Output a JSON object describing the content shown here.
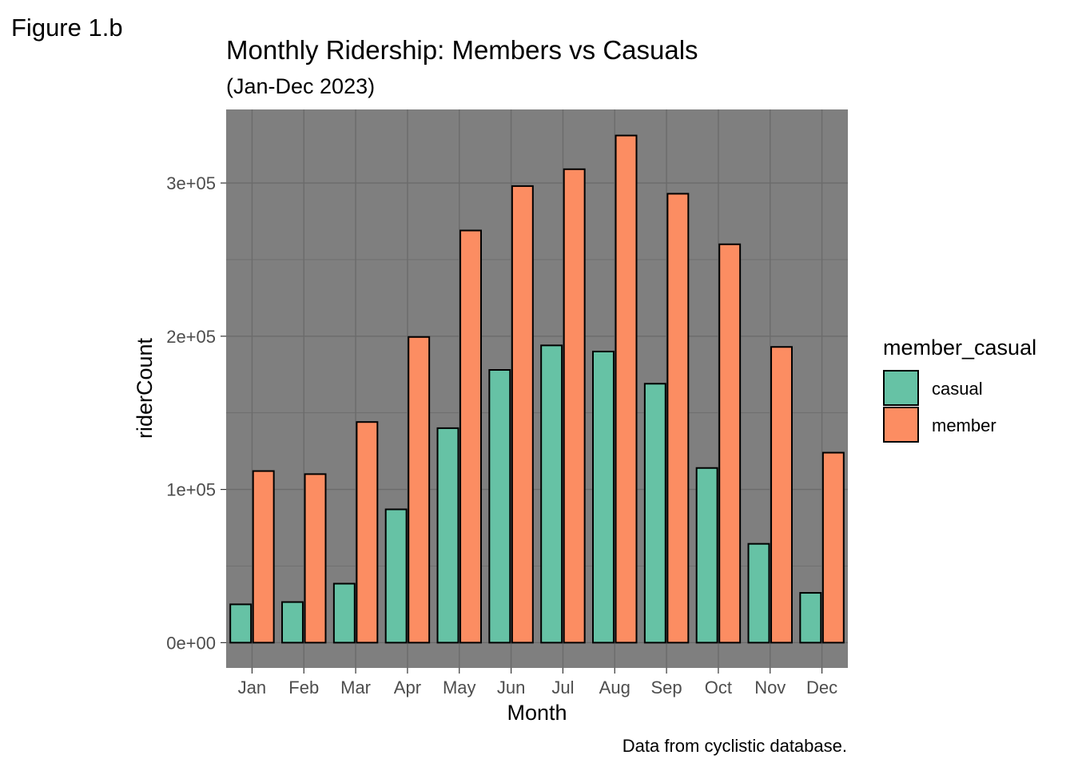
{
  "figure_label": "Figure 1.b",
  "chart_data": {
    "type": "bar",
    "title": "Monthly Ridership: Members vs Casuals",
    "subtitle": "(Jan-Dec 2023)",
    "xlabel": "Month",
    "ylabel": "riderCount",
    "caption": "Data from cyclistic database.",
    "categories": [
      "Jan",
      "Feb",
      "Mar",
      "Apr",
      "May",
      "Jun",
      "Jul",
      "Aug",
      "Sep",
      "Oct",
      "Nov",
      "Dec"
    ],
    "series": [
      {
        "name": "casual",
        "color": "#66c2a5",
        "values": [
          25000,
          26500,
          38500,
          87000,
          140000,
          178000,
          194000,
          190000,
          169000,
          114000,
          64500,
          32500
        ]
      },
      {
        "name": "member",
        "color": "#fc8d62",
        "values": [
          112000,
          110000,
          144000,
          199500,
          269000,
          298000,
          309000,
          331000,
          293000,
          260000,
          193000,
          124000
        ]
      }
    ],
    "ylim": [
      -16500,
      348000
    ],
    "yticks": [
      0,
      100000,
      200000,
      300000
    ],
    "ytick_labels": [
      "0e+00",
      "1e+05",
      "2e+05",
      "3e+05"
    ],
    "grid": true,
    "legend": {
      "title": "member_casual",
      "placement": "right"
    },
    "panel_background": "#7f7f7f",
    "grid_color": "#6b6b6b"
  }
}
